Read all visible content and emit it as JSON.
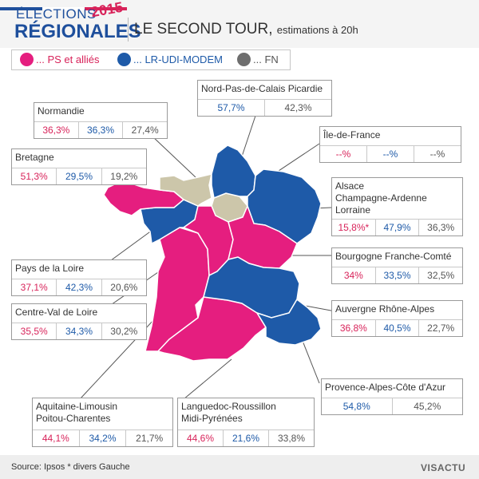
{
  "header": {
    "title_line1": "ÉLECTIONS",
    "title_line2": "RÉGIONALES",
    "year": "2015",
    "subtitle": "LE SECOND TOUR,",
    "subtitle_small": "estimations à 20h"
  },
  "legend": [
    {
      "label": "... PS et alliés",
      "color": "#e51e7f"
    },
    {
      "label": "... LR-UDI-MODEM",
      "color": "#1e5aa8"
    },
    {
      "label": "... FN",
      "color": "#6e6e6e"
    }
  ],
  "colors": {
    "ps": "#e51e7f",
    "lr": "#1e5aa8",
    "fn": "#ccc6aa",
    "flag_blue": "#1e4f9c",
    "flag_white": "#ffffff",
    "flag_red": "#d8235a"
  },
  "regions": {
    "nord": {
      "name": "Nord-Pas-de-Calais Picardie",
      "values": [
        "57,7%",
        "42,3%"
      ]
    },
    "normandie": {
      "name": "Normandie",
      "values": [
        "36,3%",
        "36,3%",
        "27,4%"
      ]
    },
    "idf": {
      "name": "Île-de-France",
      "values": [
        "--%",
        "--%",
        "--%"
      ]
    },
    "bretagne": {
      "name": "Bretagne",
      "values": [
        "51,3%",
        "29,5%",
        "19,2%"
      ]
    },
    "alsace": {
      "name_lines": [
        "Alsace",
        "Champagne-Ardenne",
        "Lorraine"
      ],
      "values": [
        "15,8%*",
        "47,9%",
        "36,3%"
      ]
    },
    "pdl": {
      "name": "Pays de la Loire",
      "values": [
        "37,1%",
        "42,3%",
        "20,6%"
      ]
    },
    "bourgogne": {
      "name": "Bourgogne Franche-Comté",
      "values": [
        "34%",
        "33,5%",
        "32,5%"
      ]
    },
    "centre": {
      "name": "Centre-Val de Loire",
      "values": [
        "35,5%",
        "34,3%",
        "30,2%"
      ]
    },
    "auvergne": {
      "name": "Auvergne Rhône-Alpes",
      "values": [
        "36,8%",
        "40,5%",
        "22,7%"
      ]
    },
    "paca": {
      "name": "Provence-Alpes-Côte d'Azur",
      "values": [
        "54,8%",
        "45,2%"
      ]
    },
    "aquitaine": {
      "name_lines": [
        "Aquitaine-Limousin",
        "Poitou-Charentes"
      ],
      "values": [
        "44,1%",
        "34,2%",
        "21,7%"
      ]
    },
    "languedoc": {
      "name_lines": [
        "Languedoc-Roussillon",
        "Midi-Pyrénées"
      ],
      "values": [
        "44,6%",
        "21,6%",
        "33,8%"
      ]
    }
  },
  "footer": {
    "source": "Source: Ipsos   * divers Gauche",
    "brand": "VISACTU"
  }
}
